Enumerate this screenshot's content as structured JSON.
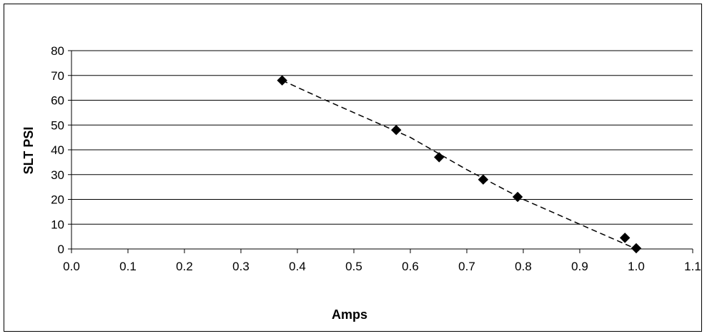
{
  "chart_data": {
    "type": "scatter",
    "title": "",
    "xlabel": "Amps",
    "ylabel": "SLT PSI",
    "xlim": [
      0.0,
      1.1
    ],
    "ylim": [
      0,
      80
    ],
    "x_ticks": [
      "0.0",
      "0.1",
      "0.2",
      "0.3",
      "0.4",
      "0.5",
      "0.6",
      "0.7",
      "0.8",
      "0.9",
      "1.0",
      "1.1"
    ],
    "y_ticks": [
      "0",
      "10",
      "20",
      "30",
      "40",
      "50",
      "60",
      "70",
      "80"
    ],
    "grid": "horizontal",
    "legend": "none",
    "series": [
      {
        "marker": "diamond",
        "color": "#000000",
        "points": [
          {
            "x": 0.373,
            "y": 68
          },
          {
            "x": 0.575,
            "y": 48
          },
          {
            "x": 0.651,
            "y": 37
          },
          {
            "x": 0.729,
            "y": 28
          },
          {
            "x": 0.79,
            "y": 21
          },
          {
            "x": 0.98,
            "y": 4.5
          },
          {
            "x": 1.0,
            "y": 0.3
          }
        ]
      }
    ],
    "trendline": {
      "style": "dashed",
      "color": "#000000",
      "points": [
        {
          "x": 0.373,
          "y": 68
        },
        {
          "x": 0.45,
          "y": 60
        },
        {
          "x": 0.55,
          "y": 50
        },
        {
          "x": 0.6,
          "y": 45
        },
        {
          "x": 0.7,
          "y": 32
        },
        {
          "x": 0.8,
          "y": 20
        },
        {
          "x": 0.9,
          "y": 10
        },
        {
          "x": 1.0,
          "y": 0
        }
      ]
    }
  }
}
